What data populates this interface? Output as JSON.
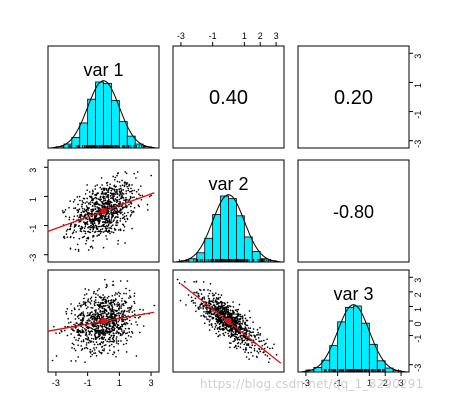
{
  "chart_data": {
    "type": "scatter",
    "title": "",
    "layout": "pairs-matrix",
    "variables": [
      "var 1",
      "var 2",
      "var 3"
    ],
    "correlations": [
      {
        "row": 1,
        "col": 2,
        "label": "0.40"
      },
      {
        "row": 1,
        "col": 3,
        "label": "0.20"
      },
      {
        "row": 2,
        "col": 3,
        "label": "-0.80"
      }
    ],
    "axis": {
      "range": [
        -3.5,
        3.5
      ],
      "ticks": [
        -3,
        -1,
        1,
        3
      ],
      "ticks_alt": [
        -1,
        1,
        2,
        3
      ],
      "tick_labels_top": [
        "-3",
        "-1",
        "1",
        "2",
        "3"
      ],
      "tick_labels_bottom_col1": [
        "-3",
        "-1",
        "1",
        "3"
      ],
      "tick_labels_bottom_col3": [
        "-3",
        "-1",
        "1",
        "2",
        "3"
      ],
      "tick_labels_left_row2": [
        "3",
        "1",
        "-1",
        "-3"
      ],
      "tick_labels_right_row1": [
        "3",
        "1",
        "-1",
        "-3"
      ],
      "tick_labels_right_row3": [
        "3",
        "2",
        "1",
        "0",
        "-1",
        "-3"
      ]
    },
    "histograms": {
      "bin_edges": [
        -3.0,
        -2.5,
        -2.0,
        -1.5,
        -1.0,
        -0.5,
        0.0,
        0.5,
        1.0,
        1.5,
        2.0,
        2.5,
        3.0
      ],
      "var1": [
        2,
        6,
        16,
        38,
        74,
        100,
        98,
        72,
        40,
        18,
        6,
        2
      ],
      "var2": [
        2,
        5,
        14,
        36,
        72,
        100,
        96,
        70,
        38,
        16,
        5,
        2
      ],
      "var3": [
        3,
        7,
        18,
        40,
        76,
        98,
        100,
        74,
        42,
        17,
        6,
        2
      ]
    },
    "scatter_panels": [
      {
        "row": 2,
        "col": 1,
        "x": "var 1",
        "y": "var 2",
        "r": 0.4,
        "fit_endpoints": [
          [
            -3.5,
            -1.4
          ],
          [
            3.2,
            1.25
          ]
        ],
        "center": [
          0.0,
          0.0
        ]
      },
      {
        "row": 3,
        "col": 1,
        "x": "var 1",
        "y": "var 3",
        "r": 0.2,
        "fit_endpoints": [
          [
            -3.5,
            -0.7
          ],
          [
            3.2,
            0.6
          ]
        ],
        "center": [
          0.0,
          0.0
        ]
      },
      {
        "row": 3,
        "col": 2,
        "x": "var 2",
        "y": "var 3",
        "r": -0.8,
        "fit_endpoints": [
          [
            -3.0,
            2.55
          ],
          [
            3.3,
            -2.9
          ]
        ],
        "center": [
          0.0,
          0.0
        ]
      }
    ],
    "n_points": 900,
    "colors": {
      "histogram_fill": "#00eeff",
      "fit_line": "#e01010",
      "points": "#000000",
      "density_curve": "#000000"
    }
  },
  "watermark": "https://blog.csdn.net/qq_1_8290291"
}
